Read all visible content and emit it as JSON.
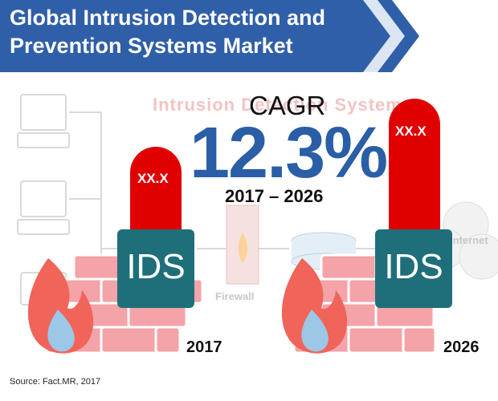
{
  "banner": {
    "title_line1": "Global Intrusion Detection and",
    "title_line2": "Prevention Systems Market",
    "color": "#2f5fa8"
  },
  "background": {
    "text": "Intrusion Detection System",
    "firewall_label": "Firewall",
    "internet_label": "Internet"
  },
  "cagr": {
    "label": "CAGR",
    "value": "12.3%",
    "period": "2017 – 2026"
  },
  "left_gauge": {
    "value_label": "XX.X",
    "box_label": "IDS",
    "year": "2017"
  },
  "right_gauge": {
    "value_label": "XX.X",
    "box_label": "IDS",
    "year": "2026"
  },
  "source": "Source: Fact.MR, 2017",
  "colors": {
    "thermometer": "#e00000",
    "ids_box": "#1f6f7a",
    "brick": "#f09aa0",
    "flame": "#f0645a",
    "drop": "#9cc7e6",
    "value_text": "#2a5ea6"
  }
}
